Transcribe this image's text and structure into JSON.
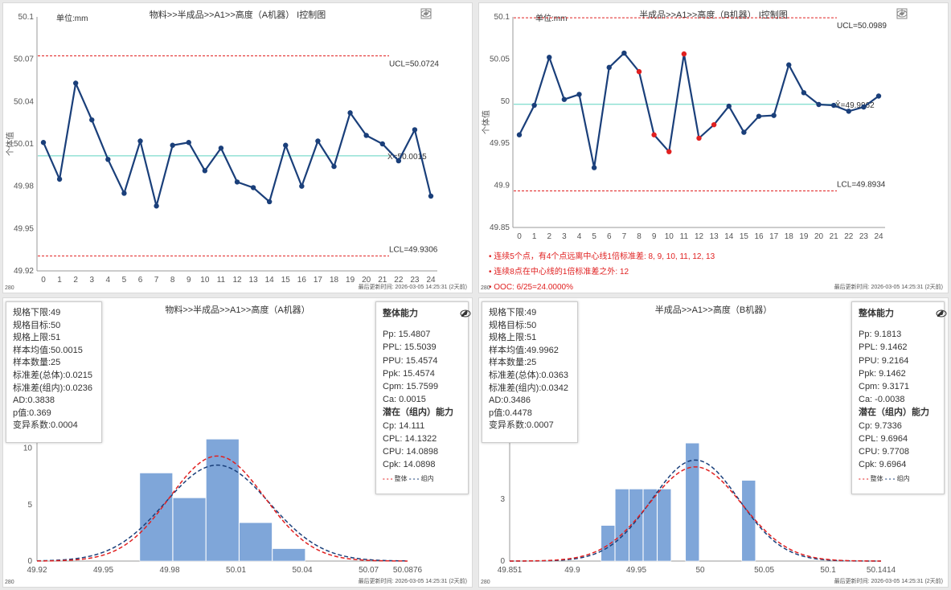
{
  "panels": {
    "p1": {
      "title": "物料>>半成品>>A1>>高度（A机器） I控制图",
      "unit": "单位:mm",
      "footer": "最后更新时间: 2026-03-05 14:25:31 (2天前)",
      "corner": "280"
    },
    "p2": {
      "title": "半成品>>A1>>高度（B机器） I控制图",
      "unit": "单位:mm",
      "footer": "最后更新时间: 2026-03-05 14:25:31 (2天前)",
      "corner": "280",
      "alerts": [
        "连续5个点，有4个点远离中心线1倍标准差: 8, 9, 10, 11, 12, 13",
        "连续8点在中心线的1倍标准差之外: 12",
        "OOC: 6/25=24.0000%"
      ]
    },
    "p3": {
      "title": "物料>>半成品>>A1>>高度（A机器）",
      "footer": "最后更新时间: 2026-03-05 14:25:31 (2天前)",
      "corner": "280",
      "stats": [
        "规格下限:49",
        "规格目标:50",
        "规格上限:51",
        "样本均值:50.0015",
        "样本数量:25",
        "标准差(总体):0.0215",
        "标准差(组内):0.0236",
        "AD:0.3838",
        "p值:0.369",
        "变异系数:0.0004"
      ],
      "cap_header1": "整体能力",
      "cap_overall": [
        "Pp:  15.4807",
        "PPL:  15.5039",
        "PPU:  15.4574",
        "Ppk:  15.4574",
        "Cpm:  15.7599",
        "Ca:  0.0015"
      ],
      "cap_header2": "潜在（组内）能力",
      "cap_within": [
        "Cp:  14.111",
        "CPL:  14.1322",
        "CPU:  14.0898",
        "Cpk:  14.0898"
      ],
      "legend_overall": "整体",
      "legend_within": "组内"
    },
    "p4": {
      "title": "半成品>>A1>>高度（B机器）",
      "footer": "最后更新时间: 2026-03-05 14:25:31 (2天前)",
      "corner": "280",
      "stats": [
        "规格下限:49",
        "规格目标:50",
        "规格上限:51",
        "样本均值:49.9962",
        "样本数量:25",
        "标准差(总体):0.0363",
        "标准差(组内):0.0342",
        "AD:0.3486",
        "p值:0.4478",
        "变异系数:0.0007"
      ],
      "cap_header1": "整体能力",
      "cap_overall": [
        "Pp:  9.1813",
        "PPL:  9.1462",
        "PPU:  9.2164",
        "Ppk:  9.1462",
        "Cpm:  9.3171",
        "Ca:  -0.0038"
      ],
      "cap_header2": "潜在（组内）能力",
      "cap_within": [
        "Cp:  9.7336",
        "CPL:  9.6964",
        "CPU:  9.7708",
        "Cpk:  9.6964"
      ],
      "legend_overall": "整体",
      "legend_within": "组内"
    }
  },
  "colors": {
    "line": "#1a3f7a",
    "center": "#5fd3c0",
    "limit": "#e02020",
    "bar": "#7fa6d9",
    "overall": "#e02020",
    "within": "#1a3f7a",
    "ooc": "#e02020"
  },
  "chart_data": [
    {
      "type": "line",
      "ylabel": "个体值",
      "x": [
        0,
        1,
        2,
        3,
        4,
        5,
        6,
        7,
        8,
        9,
        10,
        11,
        12,
        13,
        14,
        15,
        16,
        17,
        18,
        19,
        20,
        21,
        22,
        23,
        24
      ],
      "values": [
        50.011,
        49.985,
        50.053,
        50.027,
        49.999,
        49.975,
        50.012,
        49.966,
        50.009,
        50.011,
        49.991,
        50.007,
        49.983,
        49.979,
        49.969,
        50.009,
        49.98,
        50.012,
        49.994,
        50.032,
        50.016,
        50.01,
        49.998,
        50.02,
        49.973
      ],
      "ylim": [
        49.92,
        50.1
      ],
      "yticks": [
        "49.92",
        "49.95",
        "49.98",
        "50.01",
        "50.04",
        "50.07",
        "50.1"
      ],
      "ucl": 50.0724,
      "cl": 50.0015,
      "lcl": 49.9306,
      "ucl_label": "UCL=50.0724",
      "cl_label": "X̄=50.0015",
      "lcl_label": "LCL=49.9306",
      "ooc_points": []
    },
    {
      "type": "line",
      "ylabel": "个体值",
      "x": [
        0,
        1,
        2,
        3,
        4,
        5,
        6,
        7,
        8,
        9,
        10,
        11,
        12,
        13,
        14,
        15,
        16,
        17,
        18,
        19,
        20,
        21,
        22,
        23,
        24
      ],
      "values": [
        49.96,
        49.995,
        50.052,
        50.002,
        50.008,
        49.921,
        50.04,
        50.057,
        50.035,
        49.96,
        49.94,
        50.056,
        49.956,
        49.972,
        49.994,
        49.963,
        49.982,
        49.983,
        50.043,
        50.01,
        49.996,
        49.995,
        49.988,
        49.993,
        50.006
      ],
      "ylim": [
        49.85,
        50.1
      ],
      "yticks": [
        "49.85",
        "49.9",
        "49.95",
        "50",
        "50.05",
        "50.1"
      ],
      "ucl": 50.0989,
      "cl": 49.9962,
      "lcl": 49.8934,
      "ucl_label": "UCL=50.0989",
      "cl_label": "X̄=49.9962",
      "lcl_label": "LCL=49.8934",
      "ooc_points": [
        8,
        9,
        10,
        11,
        12,
        13
      ]
    },
    {
      "type": "bar",
      "xticks": [
        "49.92",
        "49.95",
        "49.98",
        "50.01",
        "50.04",
        "50.07",
        "50.0876"
      ],
      "xtick_values": [
        49.92,
        49.95,
        49.98,
        50.01,
        50.04,
        50.07,
        50.0876
      ],
      "xlim": [
        49.92,
        50.0876
      ],
      "yticks": [
        "0",
        "5",
        "10"
      ],
      "ylim": [
        0,
        22
      ],
      "bins": [
        [
          49.9665,
          49.9815
        ],
        [
          49.9815,
          49.9965
        ],
        [
          49.9965,
          50.0115
        ],
        [
          50.0115,
          50.0265
        ],
        [
          50.0265,
          50.0415
        ]
      ],
      "values": [
        7.8,
        5.6,
        10.8,
        3.4,
        1.1
      ],
      "mean": 50.0015,
      "sd_overall": 0.0215,
      "sd_within": 0.0236,
      "curve_peak_overall": 9.3,
      "curve_peak_within": 8.5
    },
    {
      "type": "bar",
      "xticks": [
        "49.851",
        "49.9",
        "49.95",
        "50",
        "50.05",
        "50.1",
        "50.1414"
      ],
      "xtick_values": [
        49.851,
        49.9,
        49.95,
        50,
        50.05,
        50.1,
        50.1414
      ],
      "xlim": [
        49.851,
        50.1414
      ],
      "yticks": [
        "0",
        "3",
        "6"
      ],
      "ylim": [
        0,
        12
      ],
      "bins": [
        [
          49.9225,
          49.9335
        ],
        [
          49.9335,
          49.9445
        ],
        [
          49.9445,
          49.9555
        ],
        [
          49.9555,
          49.9665
        ],
        [
          49.9665,
          49.9775
        ],
        [
          49.9775,
          49.9885
        ],
        [
          49.9885,
          49.9995
        ],
        [
          49.9995,
          50.0105
        ],
        [
          50.0105,
          50.0215
        ],
        [
          50.0215,
          50.0325
        ],
        [
          50.0325,
          50.0435
        ]
      ],
      "values": [
        1.72,
        3.48,
        3.48,
        3.48,
        3.48,
        0,
        5.7,
        0,
        0,
        0,
        3.9
      ],
      "mean": 49.9962,
      "sd_overall": 0.0363,
      "sd_within": 0.0342,
      "curve_peak_overall": 4.55,
      "curve_peak_within": 4.88
    }
  ]
}
